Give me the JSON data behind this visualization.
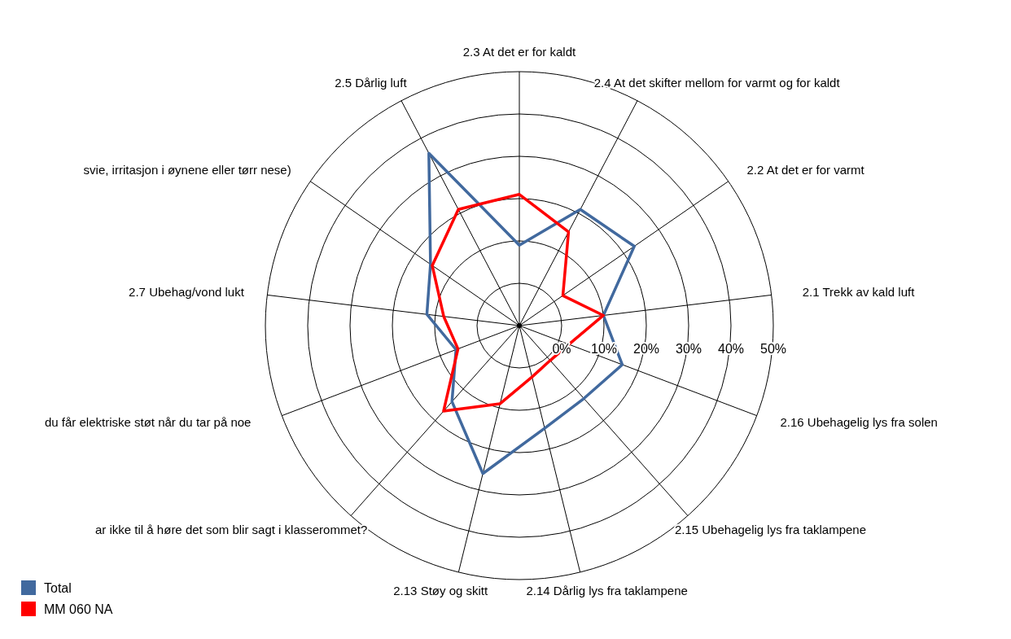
{
  "chart_data": {
    "type": "radar",
    "categories": [
      "2.3 At det er for kaldt",
      "2.4 At det skifter mellom  for varmt og for kaldt",
      "2.2 At det  er for varmt",
      "2.1 Trekk av kald luft",
      "2.16 Ubehagelig lys fra solen",
      "2.15 Ubehagelig lys fra taklampene",
      "2.14 Dårlig lys fra taklampene",
      "2.13 Støy og skitt",
      "ar ikke til å høre det som blir sagt i klasserommet?",
      "du får elektriske støt når du tar på noe",
      "2.7 Ubehag/vond lukt",
      "svie, irritasjon i øynene eller tørr nese)",
      "2.5 Dårlig luft"
    ],
    "series": [
      {
        "name": "Total",
        "color": "#41699e",
        "values": [
          9,
          21,
          23,
          10,
          16,
          13,
          15,
          26,
          14,
          6,
          12,
          15.5,
          36
        ]
      },
      {
        "name": "MM 060 NA",
        "color": "#ff0000",
        "values": [
          21,
          15,
          2.5,
          10,
          2.5,
          1,
          2.5,
          9,
          17,
          5.5,
          8,
          15,
          21
        ]
      }
    ],
    "ylim": [
      -10,
      50
    ],
    "yticks": [
      {
        "value": 0,
        "label": "0%"
      },
      {
        "value": 10,
        "label": "10%"
      },
      {
        "value": 20,
        "label": "20%"
      },
      {
        "value": 30,
        "label": "30%"
      },
      {
        "value": 40,
        "label": "40%"
      },
      {
        "value": 50,
        "label": "50%"
      }
    ],
    "grid": true,
    "legend": "bottom left"
  }
}
